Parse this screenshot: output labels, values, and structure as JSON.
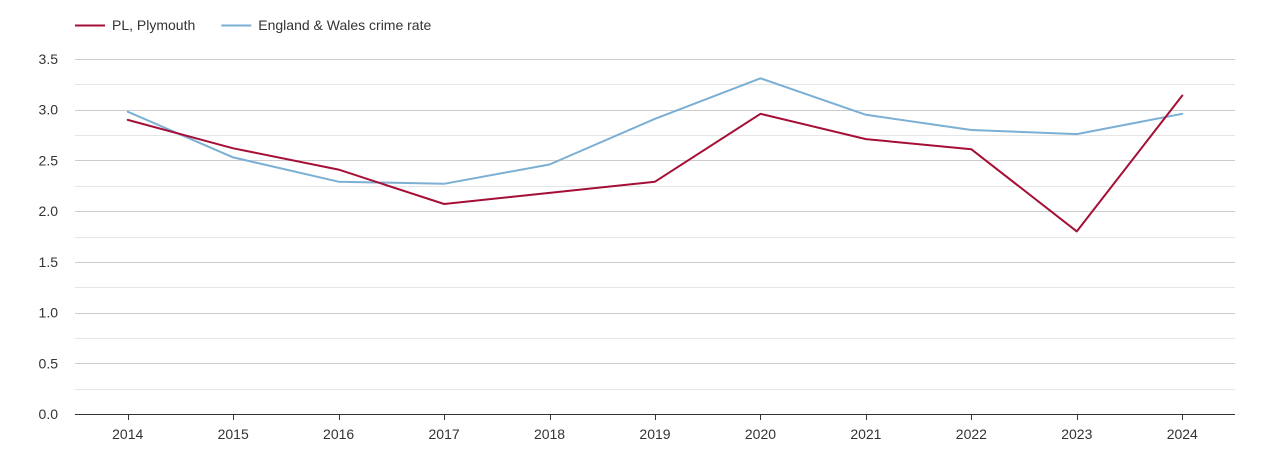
{
  "chart_data": {
    "type": "line",
    "title": "",
    "xlabel": "",
    "ylabel": "",
    "categories": [
      "2014",
      "2015",
      "2016",
      "2017",
      "2018",
      "2019",
      "2020",
      "2021",
      "2022",
      "2023",
      "2024"
    ],
    "ylim": [
      0,
      3.5
    ],
    "yticks": [
      "0.0",
      "0.5",
      "1.0",
      "1.5",
      "2.0",
      "2.5",
      "3.0",
      "3.5"
    ],
    "grid": true,
    "legend_position": "top-left",
    "series": [
      {
        "name": "PL, Plymouth",
        "color": "#a50f35",
        "values": [
          2.9,
          2.62,
          2.41,
          2.07,
          2.18,
          2.29,
          2.96,
          2.71,
          2.61,
          1.8,
          3.14
        ]
      },
      {
        "name": "England & Wales crime rate",
        "color": "#7bafd4",
        "values": [
          2.98,
          2.53,
          2.29,
          2.27,
          2.46,
          2.91,
          3.31,
          2.95,
          2.8,
          2.76,
          2.96
        ]
      }
    ]
  }
}
